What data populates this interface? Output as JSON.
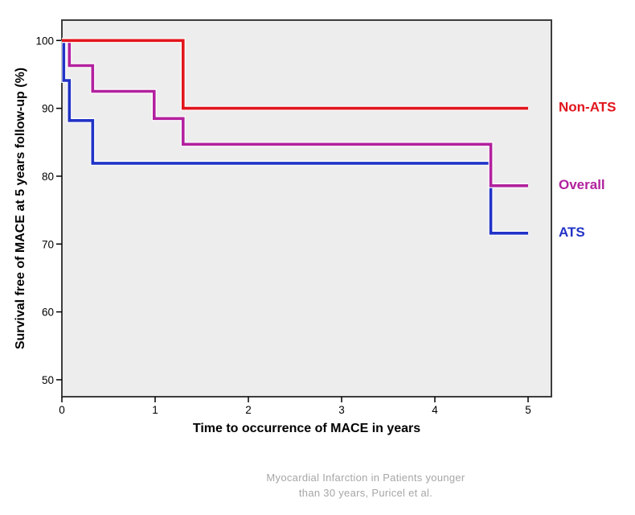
{
  "figure": {
    "y_axis_title": "Survival free of MACE at 5 years follow-up (%)",
    "x_axis_title": "Time to occurrence of MACE in years",
    "caption_line1": "Myocardial Infarction in Patients younger",
    "caption_line2": "than 30 years, Puricel et al.",
    "caption_color": "#a6a6a6",
    "plot_bg_color": "#ededed",
    "plot_border_color": "#3d3d3d",
    "tick_color": "#000000",
    "tick_label_color": "#000000"
  },
  "chart_data": {
    "type": "line",
    "subtype": "kaplan-meier-step",
    "title": "",
    "xlabel": "Time to occurrence of MACE in years",
    "ylabel": "Survival free of MACE at 5 years follow-up (%)",
    "xlim": [
      0,
      5.25
    ],
    "ylim": [
      47.5,
      103
    ],
    "x_ticks": [
      0,
      1,
      2,
      3,
      4,
      5
    ],
    "y_ticks": [
      50,
      60,
      70,
      80,
      90,
      100
    ],
    "grid": false,
    "legend_position": "right-outside",
    "series": [
      {
        "name": "Non-ATS",
        "color": "#e1151d",
        "points": [
          [
            0,
            100
          ],
          [
            1.3,
            100
          ],
          [
            1.3,
            90
          ],
          [
            5,
            90
          ]
        ]
      },
      {
        "name": "Overall",
        "color": "#b2219e",
        "points": [
          [
            0,
            100
          ],
          [
            0.08,
            100
          ],
          [
            0.08,
            96.3
          ],
          [
            0.33,
            96.3
          ],
          [
            0.33,
            92.5
          ],
          [
            0.99,
            92.5
          ],
          [
            0.99,
            88.5
          ],
          [
            1.3,
            88.5
          ],
          [
            1.3,
            84.7
          ],
          [
            4.6,
            84.7
          ],
          [
            4.6,
            78.6
          ],
          [
            5,
            78.6
          ]
        ]
      },
      {
        "name": "ATS",
        "color": "#2133c6",
        "points": [
          [
            0,
            100
          ],
          [
            0.02,
            100
          ],
          [
            0.02,
            94.1
          ],
          [
            0.08,
            94.1
          ],
          [
            0.08,
            88.2
          ],
          [
            0.33,
            88.2
          ],
          [
            0.33,
            81.9
          ],
          [
            4.6,
            81.9
          ],
          [
            4.6,
            71.6
          ],
          [
            5,
            71.6
          ]
        ]
      }
    ]
  }
}
